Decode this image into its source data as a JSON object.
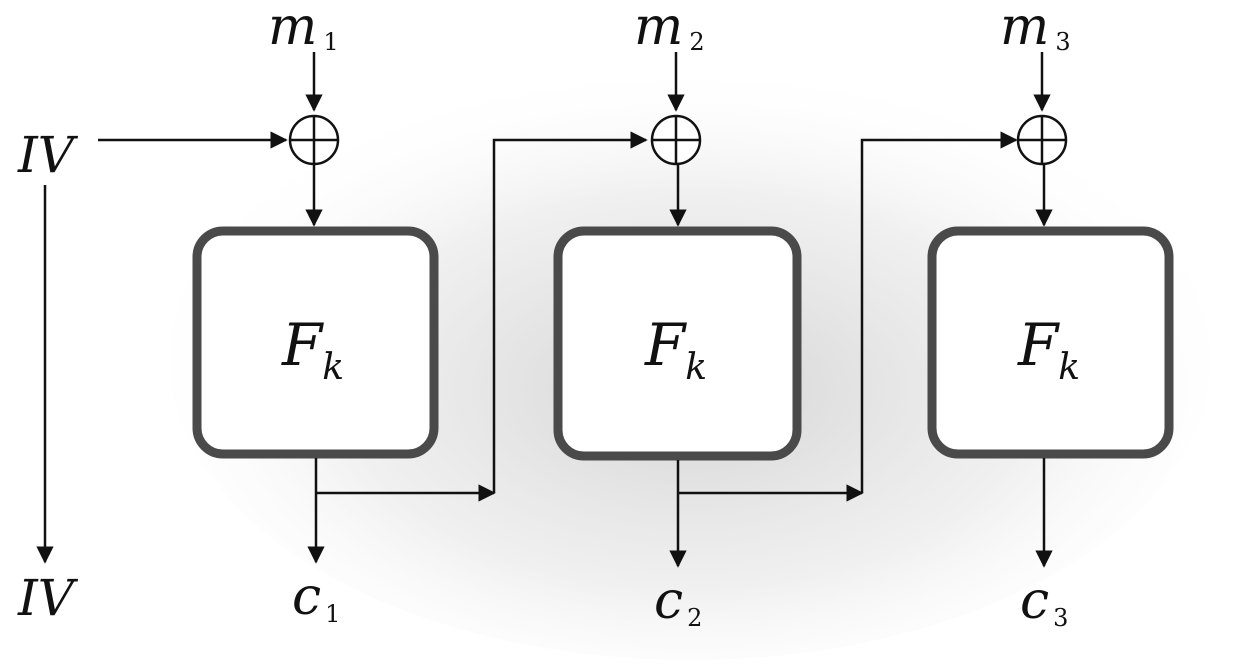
{
  "diagram": {
    "iv_label_top": "IV",
    "iv_label_bottom": "IV",
    "block_function": {
      "main": "F",
      "sub": "k"
    },
    "stages": [
      {
        "message": {
          "main": "m",
          "sub": "1"
        },
        "ciphertext": {
          "main": "c",
          "sub": "1"
        }
      },
      {
        "message": {
          "main": "m",
          "sub": "2"
        },
        "ciphertext": {
          "main": "c",
          "sub": "2"
        }
      },
      {
        "message": {
          "main": "m",
          "sub": "3"
        },
        "ciphertext": {
          "main": "c",
          "sub": "3"
        }
      }
    ],
    "colors": {
      "background": "#ffffff",
      "ink": "#111111",
      "box_border": "#4a4a4a",
      "shading": "#d9d9d9"
    }
  }
}
